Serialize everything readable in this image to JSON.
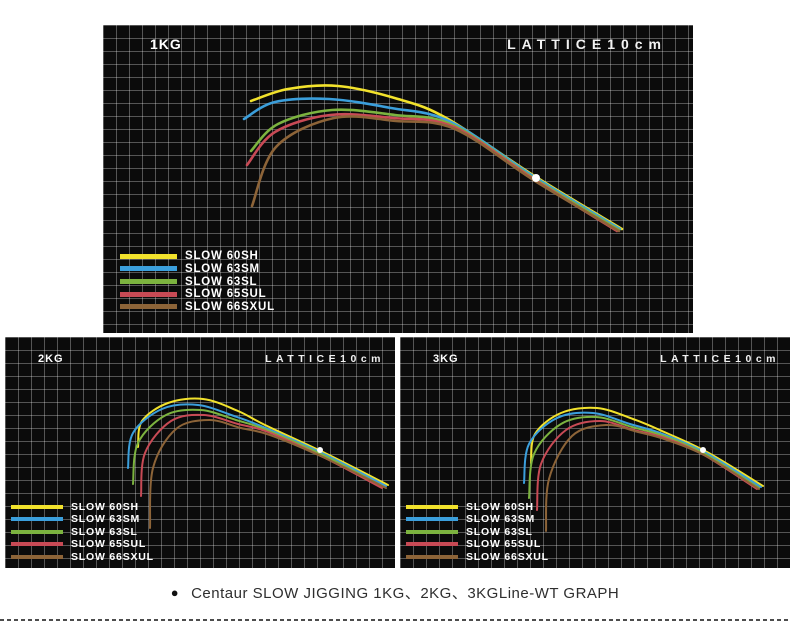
{
  "page": {
    "caption_bullet": "●",
    "caption": "Centaur SLOW JIGGING 1KG、2KG、3KGLine-WT GRAPH"
  },
  "colors": {
    "panel_background": "#0b0b0b",
    "grid_line": "rgba(255,255,255,0.30)",
    "label_text": "#ffffff",
    "weight_dot": "#ffffff",
    "caption_text": "#2e2e2e"
  },
  "chart_data": [
    {
      "type": "line",
      "title": "1KG",
      "weight_label": "1KG",
      "lattice_label": "LATTICE10cm",
      "lattice_cm": 10,
      "grid": "on",
      "legend_position": "bottom-left",
      "stroke_width": 2.6,
      "weight_dot": [
        433,
        153
      ],
      "dot_radius": 4,
      "series": [
        {
          "name": "SLOW 60SH",
          "color": "#f2e22c",
          "points": [
            [
              148,
              76
            ],
            [
              185,
              64
            ],
            [
              235,
              61
            ],
            [
              295,
              74
            ],
            [
              345,
              94
            ],
            [
              433,
              152
            ],
            [
              519,
              204
            ]
          ]
        },
        {
          "name": "SLOW 63SM",
          "color": "#3b9fdc",
          "points": [
            [
              141,
              94
            ],
            [
              172,
              77
            ],
            [
              226,
              74
            ],
            [
              288,
              83
            ],
            [
              348,
              97
            ],
            [
              433,
              153
            ],
            [
              517,
              204
            ]
          ]
        },
        {
          "name": "SLOW 63SL",
          "color": "#7cb33f",
          "points": [
            [
              148,
              126
            ],
            [
              175,
              99
            ],
            [
              229,
              85
            ],
            [
              292,
              90
            ],
            [
              350,
              100
            ],
            [
              432,
              154
            ],
            [
              516,
              205
            ]
          ]
        },
        {
          "name": "SLOW 65SUL",
          "color": "#c84a55",
          "points": [
            [
              144,
              140
            ],
            [
              172,
              107
            ],
            [
              227,
              90
            ],
            [
              290,
              93
            ],
            [
              351,
              102
            ],
            [
              432,
              155
            ],
            [
              514,
              206
            ]
          ]
        },
        {
          "name": "SLOW 66SXUL",
          "color": "#8d6438",
          "points": [
            [
              149,
              181
            ],
            [
              173,
              122
            ],
            [
              231,
              93
            ],
            [
              293,
              96
            ],
            [
              352,
              104
            ],
            [
              432,
              156
            ],
            [
              516,
              206
            ]
          ]
        }
      ]
    },
    {
      "type": "line",
      "title": "2KG",
      "weight_label": "2KG",
      "lattice_label": "LATTICE10cm",
      "lattice_cm": 10,
      "grid": "on",
      "legend_position": "bottom-left",
      "stroke_width": 2,
      "weight_dot": [
        315,
        113
      ],
      "dot_radius": 3,
      "series": [
        {
          "name": "SLOW 60SH",
          "color": "#f2e22c",
          "points": [
            [
              133,
              110
            ],
            [
              137,
              84
            ],
            [
              163,
              66
            ],
            [
              198,
              62
            ],
            [
              233,
              74
            ],
            [
              260,
              88
            ],
            [
              322,
              117
            ],
            [
              383,
              148
            ]
          ]
        },
        {
          "name": "SLOW 63SM",
          "color": "#3b9fdc",
          "points": [
            [
              123,
              131
            ],
            [
              128,
              96
            ],
            [
              157,
              72
            ],
            [
              193,
              68
            ],
            [
              229,
              79
            ],
            [
              261,
              91
            ],
            [
              321,
              118
            ],
            [
              381,
              149
            ]
          ]
        },
        {
          "name": "SLOW 63SL",
          "color": "#7cb33f",
          "points": [
            [
              128,
              147
            ],
            [
              133,
              106
            ],
            [
              161,
              78
            ],
            [
              196,
              73
            ],
            [
              231,
              83
            ],
            [
              262,
              93
            ],
            [
              320,
              119
            ],
            [
              379,
              150
            ]
          ]
        },
        {
          "name": "SLOW 65SUL",
          "color": "#c84a55",
          "points": [
            [
              136,
              159
            ],
            [
              140,
              116
            ],
            [
              166,
              84
            ],
            [
              199,
              78
            ],
            [
              233,
              87
            ],
            [
              263,
              95
            ],
            [
              318,
              120
            ],
            [
              377,
              151
            ]
          ]
        },
        {
          "name": "SLOW 66SXUL",
          "color": "#8d6438",
          "points": [
            [
              145,
              191
            ],
            [
              148,
              131
            ],
            [
              171,
              92
            ],
            [
              204,
              83
            ],
            [
              236,
              91
            ],
            [
              265,
              98
            ],
            [
              320,
              121
            ],
            [
              381,
              151
            ]
          ]
        }
      ]
    },
    {
      "type": "line",
      "title": "3KG",
      "weight_label": "3KG",
      "lattice_label": "LATTICE10cm",
      "lattice_cm": 10,
      "grid": "on",
      "legend_position": "bottom-left",
      "stroke_width": 2,
      "weight_dot": [
        303,
        113
      ],
      "dot_radius": 3,
      "series": [
        {
          "name": "SLOW 60SH",
          "color": "#f2e22c",
          "points": [
            [
              131,
              126
            ],
            [
              135,
              97
            ],
            [
              161,
              76
            ],
            [
              197,
              71
            ],
            [
              233,
              82
            ],
            [
              262,
              94
            ],
            [
              307,
              115
            ],
            [
              363,
              149
            ]
          ]
        },
        {
          "name": "SLOW 63SM",
          "color": "#3b9fdc",
          "points": [
            [
              124,
              146
            ],
            [
              129,
              107
            ],
            [
              157,
              81
            ],
            [
              193,
              76
            ],
            [
              230,
              87
            ],
            [
              263,
              97
            ],
            [
              306,
              116
            ],
            [
              361,
              150
            ]
          ]
        },
        {
          "name": "SLOW 63SL",
          "color": "#7cb33f",
          "points": [
            [
              129,
              161
            ],
            [
              134,
              117
            ],
            [
              161,
              87
            ],
            [
              196,
              80
            ],
            [
              232,
              90
            ],
            [
              264,
              99
            ],
            [
              305,
              117
            ],
            [
              359,
              151
            ]
          ]
        },
        {
          "name": "SLOW 65SUL",
          "color": "#c84a55",
          "points": [
            [
              137,
              173
            ],
            [
              141,
              127
            ],
            [
              166,
              93
            ],
            [
              200,
              84
            ],
            [
              234,
              93
            ],
            [
              265,
              101
            ],
            [
              304,
              118
            ],
            [
              357,
              152
            ]
          ]
        },
        {
          "name": "SLOW 66SXUL",
          "color": "#8d6438",
          "points": [
            [
              146,
              194
            ],
            [
              149,
              142
            ],
            [
              172,
              99
            ],
            [
              206,
              88
            ],
            [
              238,
              95
            ],
            [
              267,
              103
            ],
            [
              306,
              119
            ],
            [
              359,
              152
            ]
          ]
        }
      ]
    }
  ]
}
